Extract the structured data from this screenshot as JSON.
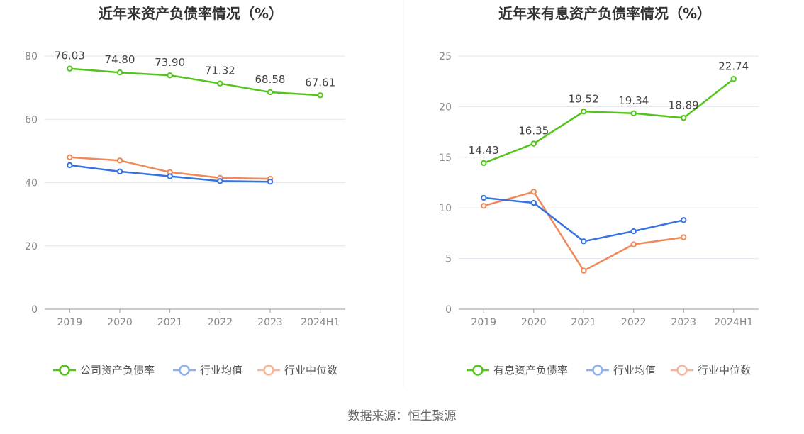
{
  "chart_data": [
    {
      "type": "line",
      "title": "近年来资产负债率情况（%）",
      "categories": [
        "2019",
        "2020",
        "2021",
        "2022",
        "2023",
        "2024H1"
      ],
      "ylim": [
        0,
        80
      ],
      "yticks": [
        0,
        20,
        40,
        60,
        80
      ],
      "series": [
        {
          "name": "公司资产负债率",
          "color": "#52c41a",
          "values": [
            76.03,
            74.8,
            73.9,
            71.32,
            68.58,
            67.61
          ],
          "labels": [
            "76.03",
            "74.80",
            "73.90",
            "71.32",
            "68.58",
            "67.61"
          ]
        },
        {
          "name": "行业均值",
          "color": "#3672e0",
          "values": [
            45.5,
            43.5,
            42.0,
            40.5,
            40.3,
            null
          ]
        },
        {
          "name": "行业中位数",
          "color": "#f0885a",
          "values": [
            48.0,
            47.0,
            43.3,
            41.5,
            41.2,
            null
          ]
        }
      ],
      "legend_position": "bottom"
    },
    {
      "type": "line",
      "title": "近年来有息资产负债率情况（%）",
      "categories": [
        "2019",
        "2020",
        "2021",
        "2022",
        "2023",
        "2024H1"
      ],
      "ylim": [
        0,
        25
      ],
      "yticks": [
        0,
        5,
        10,
        15,
        20,
        25
      ],
      "series": [
        {
          "name": "有息资产负债率",
          "color": "#52c41a",
          "values": [
            14.43,
            16.35,
            19.52,
            19.34,
            18.89,
            22.74
          ],
          "labels": [
            "14.43",
            "16.35",
            "19.52",
            "19.34",
            "18.89",
            "22.74"
          ]
        },
        {
          "name": "行业均值",
          "color": "#3672e0",
          "values": [
            11.0,
            10.5,
            6.7,
            7.7,
            8.8,
            null
          ]
        },
        {
          "name": "行业中位数",
          "color": "#f0885a",
          "values": [
            10.2,
            11.6,
            3.8,
            6.4,
            7.1,
            null
          ]
        }
      ],
      "legend_position": "bottom"
    }
  ],
  "source": "数据来源：恒生聚源"
}
